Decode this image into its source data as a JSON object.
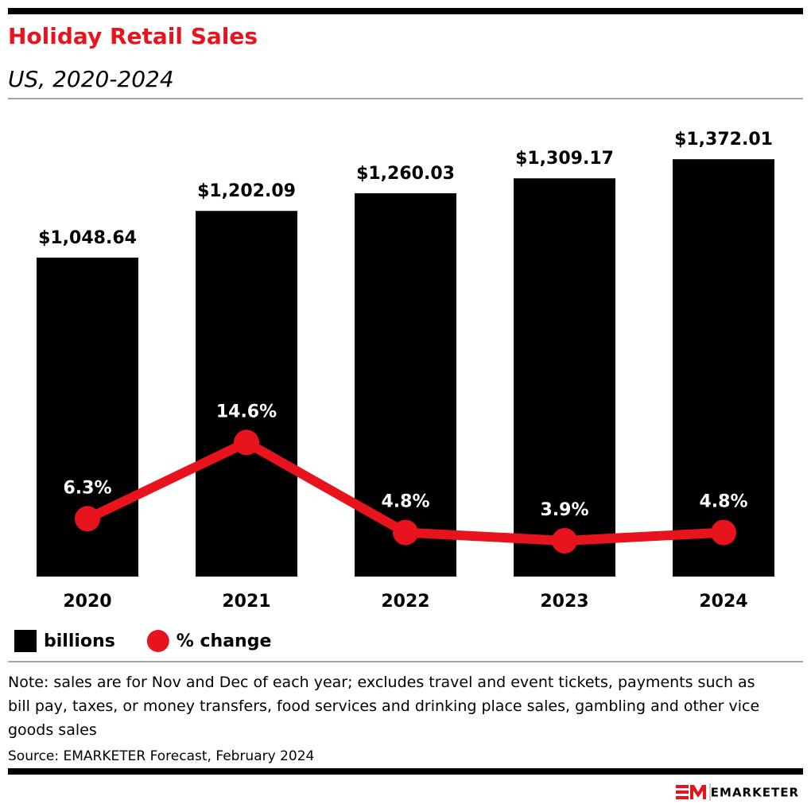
{
  "chart_data": {
    "type": "bar",
    "title": "Holiday Retail Sales",
    "subtitle": "US, 2020-2024",
    "categories": [
      "2020",
      "2021",
      "2022",
      "2023",
      "2024"
    ],
    "series": [
      {
        "name": "billions",
        "color": "#000000",
        "values": [
          1048.64,
          1202.09,
          1260.03,
          1309.17,
          1372.01
        ],
        "value_labels": [
          "$1,048.64",
          "$1,202.09",
          "$1,260.03",
          "$1,309.17",
          "$1,372.01"
        ]
      },
      {
        "name": "% change",
        "type": "line",
        "axis": "y2",
        "color": "#e8141d",
        "values": [
          6.3,
          14.6,
          4.8,
          3.9,
          4.8
        ],
        "value_labels": [
          "6.3%",
          "14.6%",
          "4.8%",
          "3.9%",
          "4.8%"
        ]
      }
    ],
    "ylim": [
      0,
      1600
    ],
    "y2lim": [
      0,
      53
    ],
    "note": "Note: sales are for Nov and Dec of each year; excludes travel and event tickets, payments such as bill pay, taxes, or money transfers, food services and drinking place sales, gambling and other vice goods sales",
    "source": "Source: EMARKETER Forecast, February 2024"
  },
  "footer": {
    "logo": "EMARKETER"
  }
}
